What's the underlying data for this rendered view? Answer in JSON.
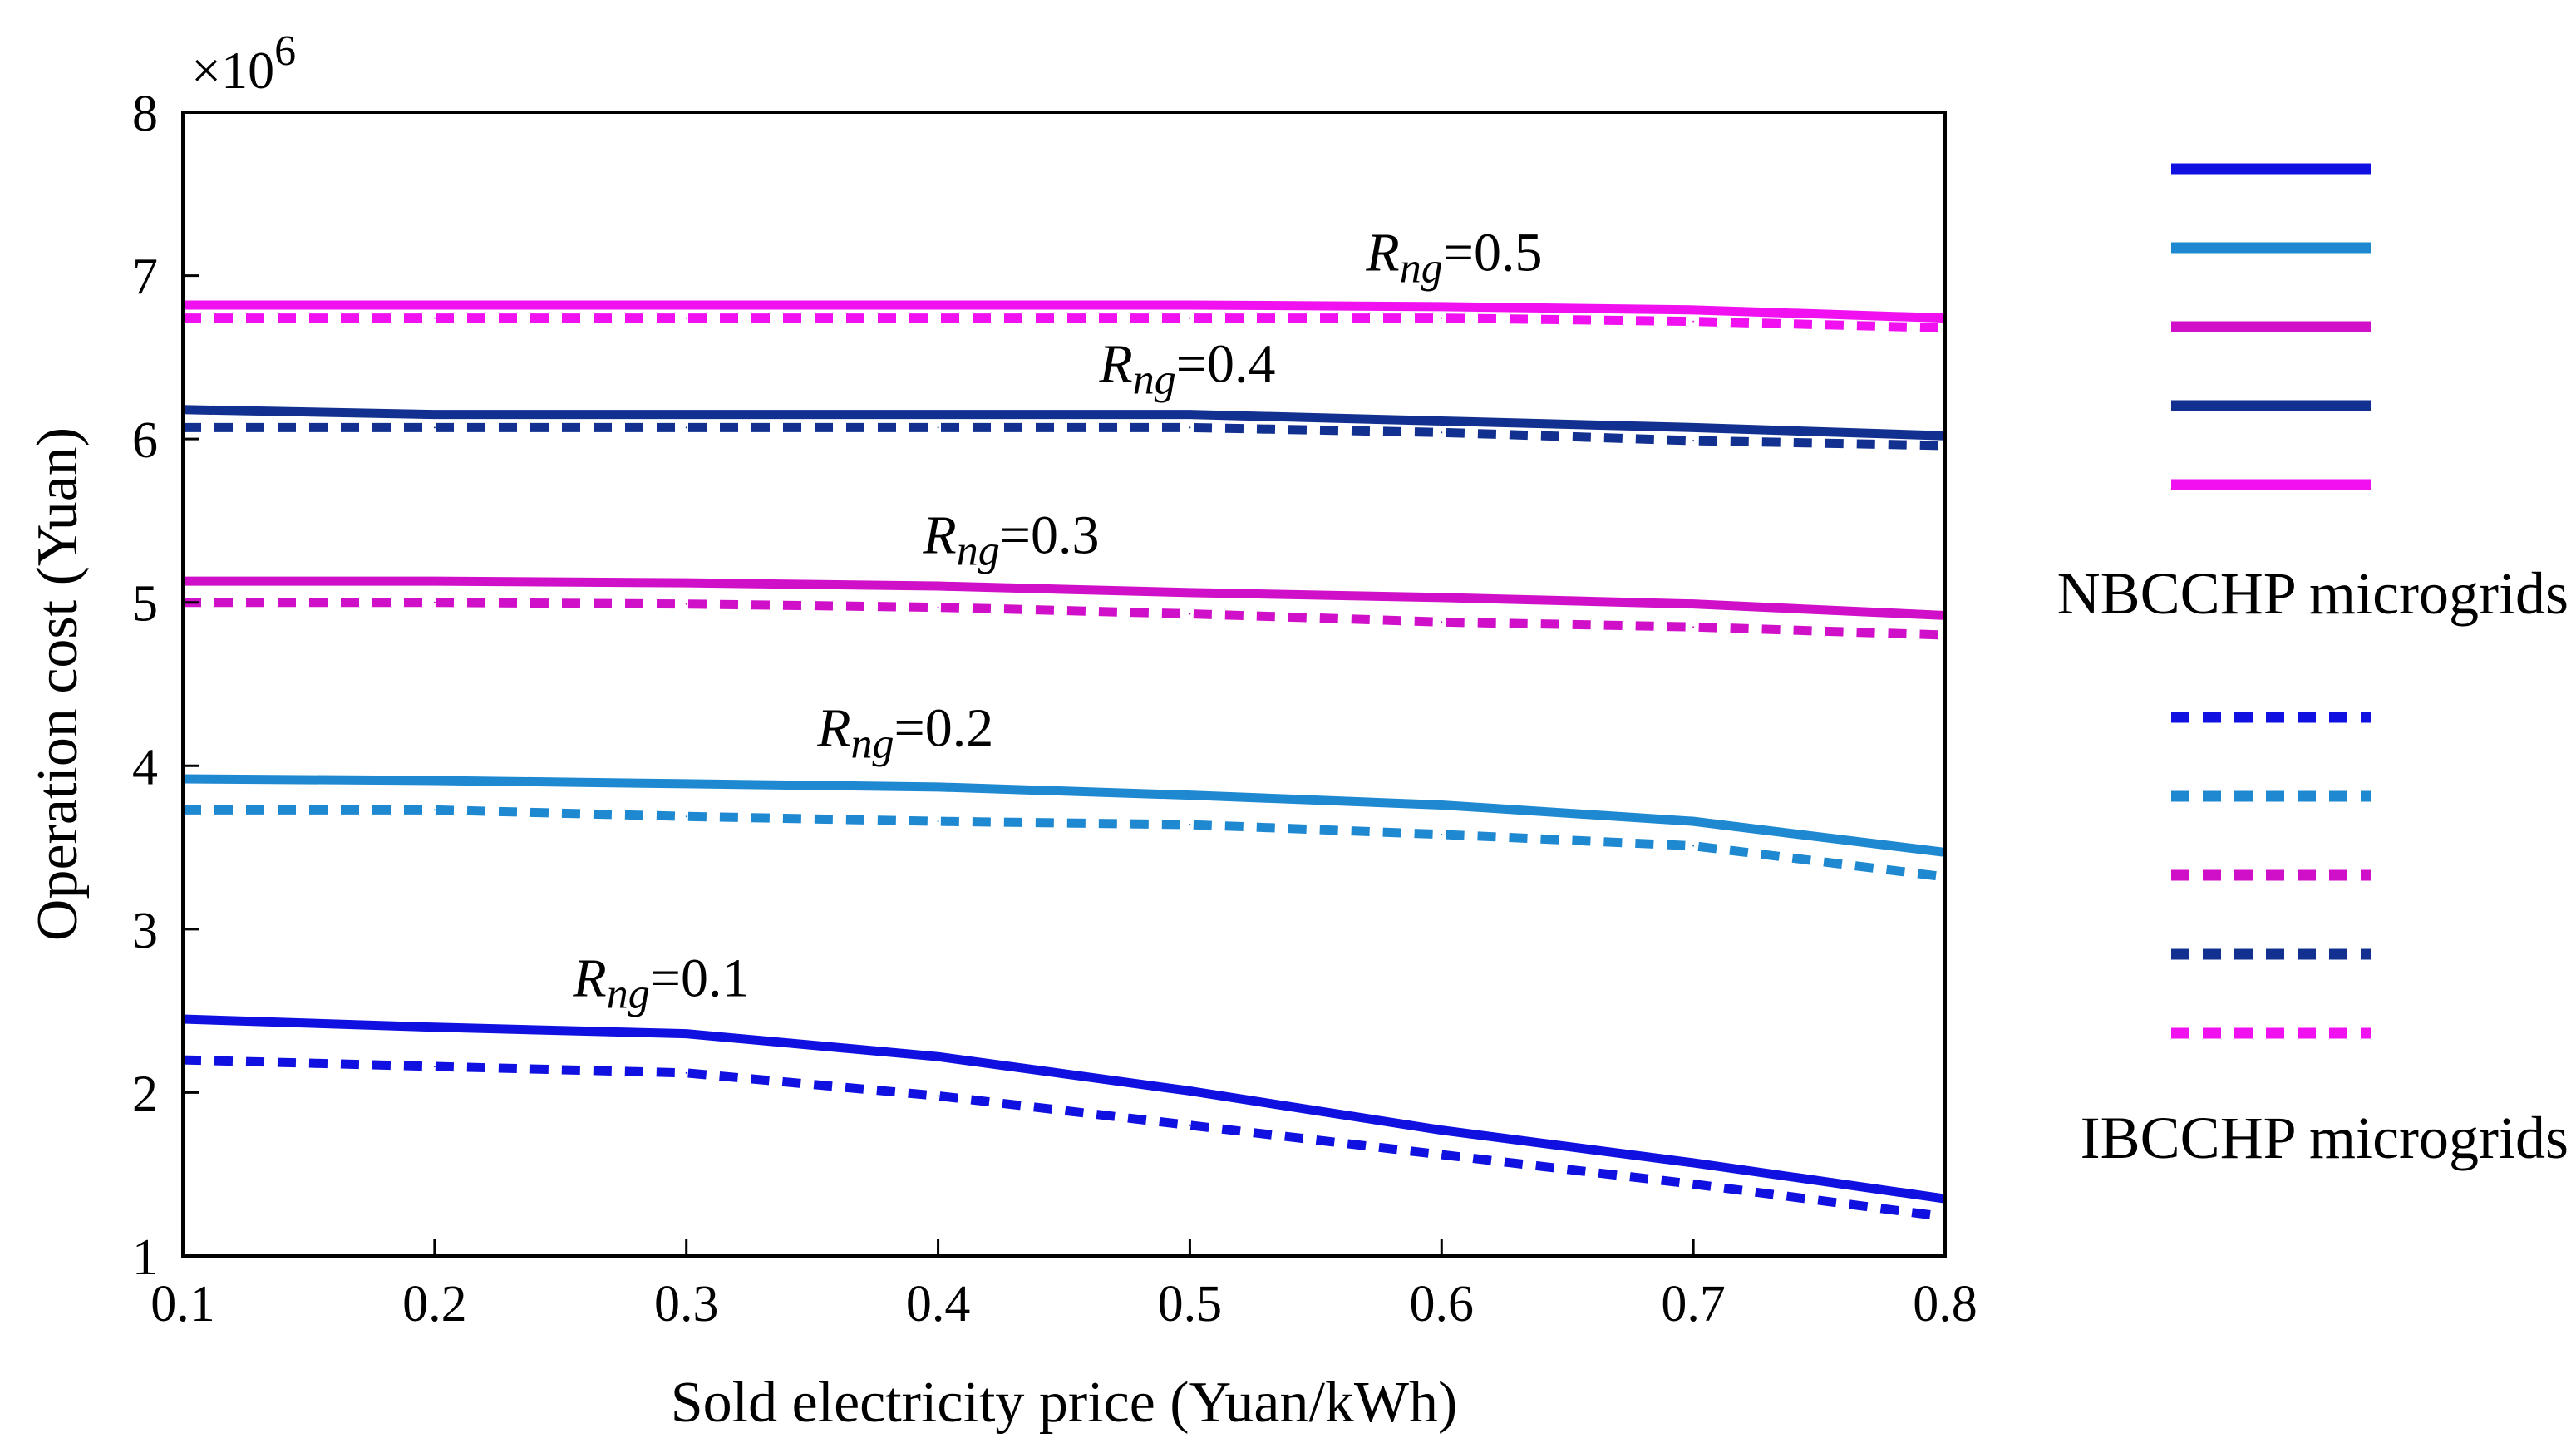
{
  "chart_data": {
    "type": "line",
    "xlabel": "Sold electricity price (Yuan/kWh)",
    "ylabel": "Operation cost (Yuan)",
    "y_multiplier": "×10",
    "y_multiplier_exp": "6",
    "xlim": [
      0.1,
      0.8
    ],
    "ylim": [
      1,
      8
    ],
    "x_ticks": [
      "0.1",
      "0.2",
      "0.3",
      "0.4",
      "0.5",
      "0.6",
      "0.7",
      "0.8"
    ],
    "y_ticks": [
      "1",
      "2",
      "3",
      "4",
      "5",
      "6",
      "7",
      "8"
    ],
    "grid": false,
    "x": [
      0.1,
      0.2,
      0.3,
      0.4,
      0.5,
      0.6,
      0.7,
      0.8
    ],
    "series": [
      {
        "group": "NBCCHP",
        "rng": "0.1",
        "style": "solid",
        "color": "#1010E0",
        "values": [
          2.45,
          2.4,
          2.36,
          2.22,
          2.01,
          1.77,
          1.57,
          1.35
        ]
      },
      {
        "group": "NBCCHP",
        "rng": "0.2",
        "style": "solid",
        "color": "#1E88D0",
        "values": [
          3.92,
          3.91,
          3.89,
          3.87,
          3.82,
          3.76,
          3.66,
          3.47
        ]
      },
      {
        "group": "NBCCHP",
        "rng": "0.3",
        "style": "solid",
        "color": "#D010C8",
        "values": [
          5.13,
          5.13,
          5.12,
          5.1,
          5.06,
          5.03,
          4.99,
          4.92
        ]
      },
      {
        "group": "NBCCHP",
        "rng": "0.4",
        "style": "solid",
        "color": "#12308F",
        "values": [
          6.18,
          6.15,
          6.15,
          6.15,
          6.15,
          6.11,
          6.07,
          6.02
        ]
      },
      {
        "group": "NBCCHP",
        "rng": "0.5",
        "style": "solid",
        "color": "#F010F0",
        "values": [
          6.82,
          6.82,
          6.82,
          6.82,
          6.82,
          6.81,
          6.79,
          6.74
        ]
      },
      {
        "group": "IBCCHP",
        "rng": "0.1",
        "style": "dashed",
        "color": "#1010E0",
        "values": [
          2.2,
          2.16,
          2.12,
          1.98,
          1.8,
          1.62,
          1.44,
          1.24
        ]
      },
      {
        "group": "IBCCHP",
        "rng": "0.2",
        "style": "dashed",
        "color": "#1E88D0",
        "values": [
          3.73,
          3.73,
          3.69,
          3.66,
          3.64,
          3.58,
          3.51,
          3.32
        ]
      },
      {
        "group": "IBCCHP",
        "rng": "0.3",
        "style": "dashed",
        "color": "#D010C8",
        "values": [
          5.0,
          5.0,
          4.99,
          4.97,
          4.93,
          4.88,
          4.85,
          4.8
        ]
      },
      {
        "group": "IBCCHP",
        "rng": "0.4",
        "style": "dashed",
        "color": "#12308F",
        "values": [
          6.07,
          6.07,
          6.07,
          6.07,
          6.07,
          6.04,
          5.99,
          5.96
        ]
      },
      {
        "group": "IBCCHP",
        "rng": "0.5",
        "style": "dashed",
        "color": "#F010F0",
        "values": [
          6.74,
          6.74,
          6.74,
          6.74,
          6.74,
          6.74,
          6.72,
          6.68
        ]
      }
    ],
    "annotations": [
      {
        "symbol": "R",
        "subscript": "ng",
        "text": "=0.5",
        "x": 0.57,
        "y": 7.03
      },
      {
        "symbol": "R",
        "subscript": "ng",
        "text": "=0.4",
        "x": 0.464,
        "y": 6.35
      },
      {
        "symbol": "R",
        "subscript": "ng",
        "text": "=0.3",
        "x": 0.394,
        "y": 5.3
      },
      {
        "symbol": "R",
        "subscript": "ng",
        "text": "=0.2",
        "x": 0.352,
        "y": 4.12
      },
      {
        "symbol": "R",
        "subscript": "ng",
        "text": "=0.1",
        "x": 0.255,
        "y": 2.59
      }
    ],
    "legend": {
      "position": "right",
      "groups": [
        {
          "label": "NBCCHP microgrids",
          "style": "solid",
          "colors": [
            "#1010E0",
            "#1E88D0",
            "#D010C8",
            "#12308F",
            "#F010F0"
          ]
        },
        {
          "label": "IBCCHP microgrids",
          "style": "dashed",
          "colors": [
            "#1010E0",
            "#1E88D0",
            "#D010C8",
            "#12308F",
            "#F010F0"
          ]
        }
      ]
    }
  }
}
